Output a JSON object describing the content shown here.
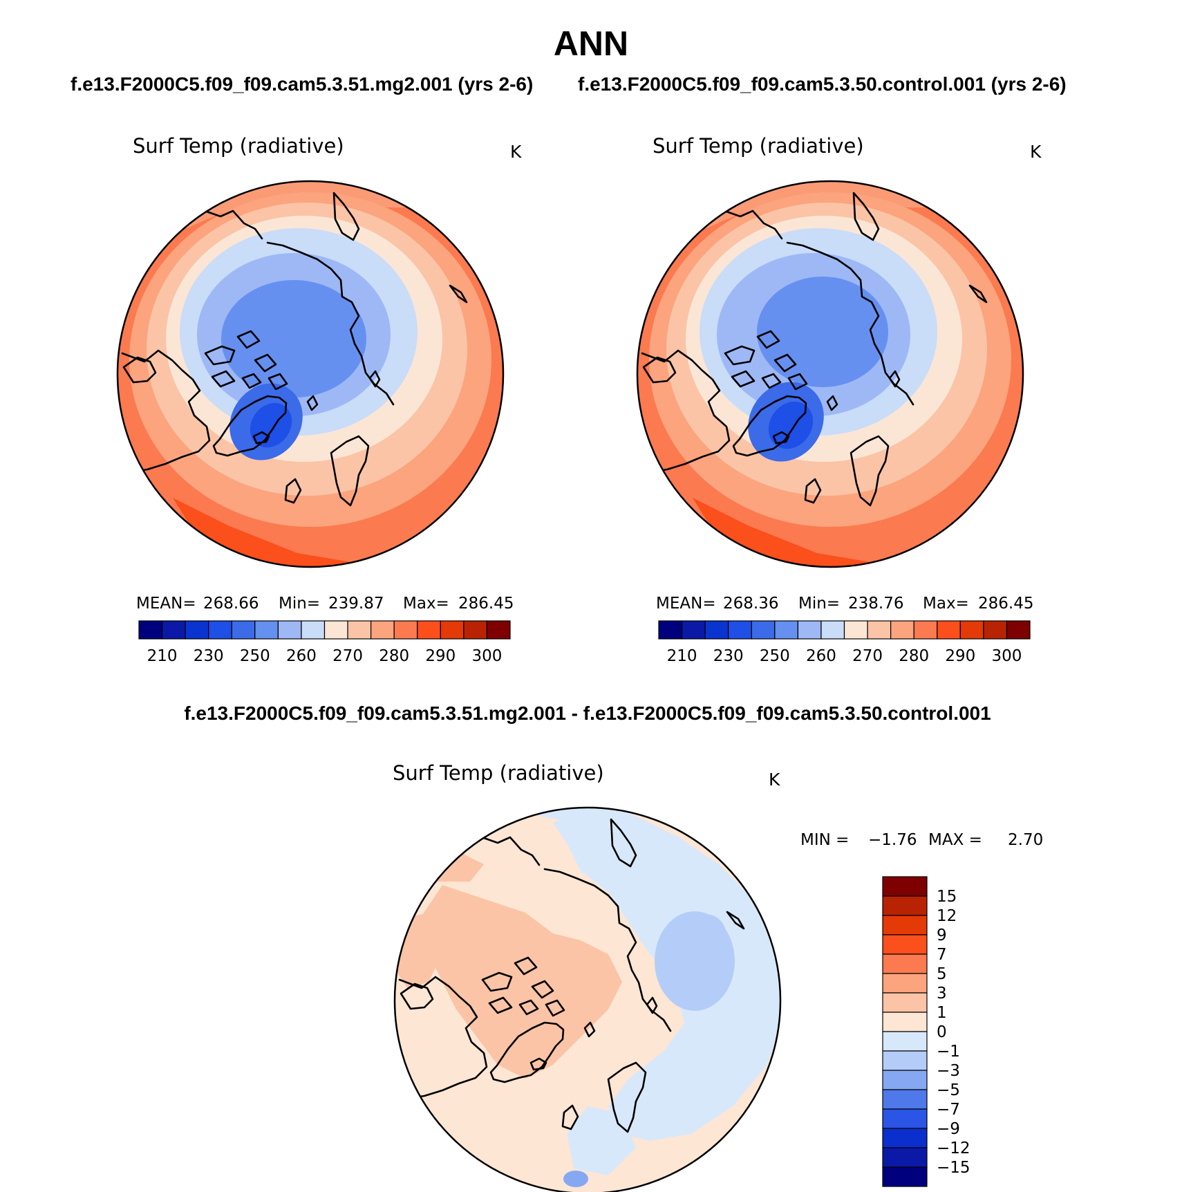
{
  "title": "ANN",
  "subtitle_left": "f.e13.F2000C5.f09_f09.cam5.3.51.mg2.001 (yrs 2-6)",
  "subtitle_right": "f.e13.F2000C5.f09_f09.cam5.3.50.control.001 (yrs 2-6)",
  "diff_title": "f.e13.F2000C5.f09_f09.cam5.3.51.mg2.001 - f.e13.F2000C5.f09_f09.cam5.3.50.control.001",
  "panels": [
    {
      "variable": "Surf Temp (radiative)",
      "units": "K",
      "stats": {
        "mean_label": "MEAN=",
        "mean": "268.66",
        "min_label": "Min=",
        "min": "239.87",
        "max_label": "Max=",
        "max": "286.45"
      },
      "min_value": 239.87,
      "mean_value": 268.66,
      "max_value": 286.45
    },
    {
      "variable": "Surf Temp (radiative)",
      "units": "K",
      "stats": {
        "mean_label": "MEAN=",
        "mean": "268.36",
        "min_label": "Min=",
        "min": "238.76",
        "max_label": "Max=",
        "max": "286.45"
      },
      "min_value": 238.76,
      "mean_value": 268.36,
      "max_value": 286.45
    },
    {
      "variable": "Surf Temp (radiative)",
      "units": "K",
      "stats_text": {
        "min_label": "MIN =",
        "min": "−1.76",
        "max_label": "MAX =",
        "max": "2.70"
      },
      "min_value": -1.76,
      "max_value": 2.7
    }
  ],
  "abs_colorbar": {
    "labels": [
      "210",
      "230",
      "250",
      "260",
      "270",
      "280",
      "290",
      "300"
    ],
    "colors": [
      "#00007f",
      "#0a1aa6",
      "#0a34cf",
      "#1e4fe6",
      "#3b6be8",
      "#6690f0",
      "#9db8f5",
      "#c9dcf8",
      "#fbe6d6",
      "#fbc4a6",
      "#fba47e",
      "#fb7a50",
      "#fb4f1c",
      "#e33a08",
      "#b82303",
      "#7f0000"
    ]
  },
  "diff_colorbar": {
    "labels": [
      "15",
      "12",
      "9",
      "7",
      "5",
      "3",
      "1",
      "0",
      "−1",
      "−3",
      "−5",
      "−7",
      "−9",
      "−12",
      "−15"
    ],
    "colors_top_to_bottom": [
      "#7f0000",
      "#b82303",
      "#e33a08",
      "#fb4f1c",
      "#fb7a50",
      "#fba47e",
      "#fbc4a6",
      "#fde6d4",
      "#d8e8fb",
      "#b3cdf8",
      "#86a8f2",
      "#4f79ea",
      "#2a55e5",
      "#0a2fcc",
      "#0a1aa6",
      "#00007f"
    ]
  }
}
